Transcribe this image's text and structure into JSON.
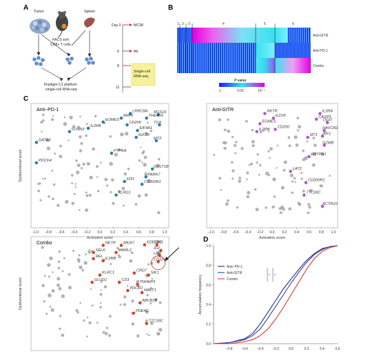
{
  "panel_labels": {
    "a": "A",
    "b": "B",
    "c": "C",
    "d": "D"
  },
  "schematic": {
    "tumor_label": "Tumor",
    "spleen_label": "Spleen",
    "facs_line1": "FACS sort",
    "facs_line2": "CD8+ T cells",
    "fluidigm_line1": "Fluidigm C1 platform",
    "fluidigm_line2": "single-cell RNA-seq",
    "timeline": [
      {
        "day": "Day 0",
        "event": "MC38"
      },
      {
        "day": "6",
        "event": "Ab"
      },
      {
        "day": "8",
        "event": ""
      },
      {
        "day": "11",
        "event": ""
      }
    ],
    "box_line1": "Single-cell",
    "box_line2": "RNA-seq",
    "colors": {
      "timeline_marker": "#c0392b",
      "box_fill": "#f7f19a",
      "tumor": "#8fa8c8",
      "spleen": "#a0524a",
      "cells": "#5c8ec9"
    }
  },
  "heatmap": {
    "row_labels": [
      "Anti-GITR",
      "Anti-PD-1",
      "Combo"
    ],
    "cluster_labels": [
      "1",
      "2",
      "3",
      "4",
      "5",
      "6"
    ],
    "legend_title": "P value",
    "legend_ticks": [
      "1",
      "0.05",
      "10⁻⁴"
    ],
    "colors": {
      "low": "#1a1aff",
      "mid": "#39e0f0",
      "high": "#e000e0"
    }
  },
  "chart_data": [
    {
      "type": "scatter",
      "title": "Anti−PD-1",
      "xlabel": "Activation score",
      "ylabel": "Dysfunctional score",
      "xlim": [
        -1.0,
        1.0
      ],
      "x_ticks": [
        "−1.0",
        "−0.8",
        "−0.6",
        "−0.4",
        "−0.2",
        "0.0",
        "0.2",
        "0.4",
        "0.6",
        "0.8",
        "1.0"
      ],
      "highlight_color": "#2d7fa6",
      "labeled_points": [
        {
          "label": "LRRC8A",
          "x": 0.47,
          "y": 0.92
        },
        {
          "label": "RGS16",
          "x": 0.9,
          "y": 0.9
        },
        {
          "label": "ARF6",
          "x": 0.33,
          "y": 0.84
        },
        {
          "label": "THEMIS",
          "x": 0.72,
          "y": 0.84
        },
        {
          "label": "EOMES",
          "x": 0.05,
          "y": 0.77
        },
        {
          "label": "CD200",
          "x": 0.42,
          "y": 0.72
        },
        {
          "label": "TOX",
          "x": 0.92,
          "y": 0.72
        },
        {
          "label": "IL2RB",
          "x": -0.18,
          "y": 0.66
        },
        {
          "label": "FOXN3",
          "x": -0.47,
          "y": 0.6
        },
        {
          "label": "EIF4A1",
          "x": 0.58,
          "y": 0.62
        },
        {
          "label": "IGF2R",
          "x": 0.56,
          "y": 0.5
        },
        {
          "label": "MT2",
          "x": 0.87,
          "y": 0.44
        },
        {
          "label": "GATA3",
          "x": -0.98,
          "y": 0.41
        },
        {
          "label": "PTPRA",
          "x": 0.18,
          "y": 0.22
        },
        {
          "label": "PDCD4",
          "x": -0.98,
          "y": 0.05
        },
        {
          "label": "GGLT1B",
          "x": 0.81,
          "y": -0.06
        },
        {
          "label": "PARK7",
          "x": 0.71,
          "y": -0.2
        },
        {
          "label": "FLI1",
          "x": 0.38,
          "y": -0.28
        },
        {
          "label": "CD200R1",
          "x": 0.65,
          "y": -0.33
        },
        {
          "label": "KLRG1",
          "x": 0.25,
          "y": -0.52
        }
      ]
    },
    {
      "type": "scatter",
      "title": "Anti-GITR",
      "xlabel": "Activation score",
      "ylabel": "",
      "xlim": [
        -1.0,
        1.0
      ],
      "x_ticks": [
        "−1.0",
        "−0.8",
        "−0.6",
        "−0.4",
        "−0.2",
        "0.0",
        "0.2",
        "0.4",
        "0.6",
        "0.8",
        "1.0"
      ],
      "highlight_color": "#b05cc8",
      "labeled_points": [
        {
          "label": "NKTR",
          "x": -0.12,
          "y": 0.92
        },
        {
          "label": "IL2RA",
          "x": 0.78,
          "y": 0.92
        },
        {
          "label": "IL21R",
          "x": 0.02,
          "y": 0.84
        },
        {
          "label": "CASP3",
          "x": 0.72,
          "y": 0.82
        },
        {
          "label": "TIGIT",
          "x": 0.9,
          "y": 0.76
        },
        {
          "label": "EOMES",
          "x": -0.2,
          "y": 0.74
        },
        {
          "label": "CD200",
          "x": 0.05,
          "y": 0.64
        },
        {
          "label": "IL2RB",
          "x": -0.25,
          "y": 0.6
        },
        {
          "label": "HAVCR2",
          "x": 0.85,
          "y": 0.62
        },
        {
          "label": "MT1",
          "x": 0.58,
          "y": 0.5
        },
        {
          "label": "IRF1",
          "x": 0.82,
          "y": 0.52
        },
        {
          "label": "GZMB",
          "x": 0.85,
          "y": 0.36
        },
        {
          "label": "ENTPD1",
          "x": 0.6,
          "y": 0.16
        },
        {
          "label": "LAT2",
          "x": 0.3,
          "y": -0.1
        },
        {
          "label": "CD200R1",
          "x": 0.55,
          "y": -0.3
        },
        {
          "label": "TTC39C",
          "x": 0.52,
          "y": -0.52
        },
        {
          "label": "ACTR10",
          "x": 0.82,
          "y": -0.72
        }
      ]
    },
    {
      "type": "scatter",
      "title": "Combo",
      "xlabel": "Activation score",
      "ylabel": "Dysfunctional score",
      "xlim": [
        -1.0,
        1.0
      ],
      "x_ticks": [],
      "highlight_color": "#d9432b",
      "labeled_points": [
        {
          "label": "NKTR",
          "x": 0.05,
          "y": 0.94
        },
        {
          "label": "MKI67",
          "x": 0.33,
          "y": 0.94
        },
        {
          "label": "KDELR2",
          "x": 0.69,
          "y": 0.95
        },
        {
          "label": "TBK1",
          "x": 0.88,
          "y": 0.95
        },
        {
          "label": "SELK",
          "x": -0.1,
          "y": 0.8
        },
        {
          "label": "MAML2",
          "x": 0.25,
          "y": 0.8
        },
        {
          "label": "ID2",
          "x": 0.94,
          "y": 0.84
        },
        {
          "label": "LBR",
          "x": 0.92,
          "y": 0.74
        },
        {
          "label": "REL",
          "x": -0.1,
          "y": 0.68
        },
        {
          "label": "IL2RB",
          "x": 0.05,
          "y": 0.64
        },
        {
          "label": "CD226",
          "x": 0.9,
          "y": 0.62
        },
        {
          "label": "KLRC1",
          "x": 0.0,
          "y": 0.36
        },
        {
          "label": "CRD7",
          "x": 0.53,
          "y": 0.4
        },
        {
          "label": "SIK1",
          "x": 0.75,
          "y": 0.36
        },
        {
          "label": "GLUD1",
          "x": -0.12,
          "y": 0.22
        },
        {
          "label": "CD3",
          "x": 0.3,
          "y": 0.22
        },
        {
          "label": "TNFAIP3",
          "x": 0.58,
          "y": 0.18
        },
        {
          "label": "PDCD1",
          "x": 0.43,
          "y": 0.06
        },
        {
          "label": "MALT1",
          "x": 0.65,
          "y": 0.02
        },
        {
          "label": "ABCB1B",
          "x": 0.62,
          "y": -0.18
        },
        {
          "label": "PDE4D",
          "x": 0.52,
          "y": -0.38
        },
        {
          "label": "TTC39C",
          "x": 0.72,
          "y": -0.58
        }
      ]
    },
    {
      "type": "line",
      "xlabel": "",
      "ylabel": "Accumulation frequency",
      "xlim": [
        -1.0,
        0.6
      ],
      "ylim": [
        0.0,
        1.0
      ],
      "y_ticks": [
        "0.0",
        "0.2",
        "0.4",
        "0.6",
        "0.8",
        "1.0"
      ],
      "x_ticks": [
        "−0.8",
        "−0.6",
        "−0.4",
        "−0.2",
        "0.0",
        "0.2",
        "0.4",
        "0.6"
      ],
      "series": [
        {
          "name": "Anti−PD-1",
          "color": "#1c2a8c",
          "x": [
            -1.0,
            -0.8,
            -0.6,
            -0.5,
            -0.4,
            -0.3,
            -0.2,
            -0.1,
            0.0,
            0.1,
            0.2,
            0.3,
            0.4,
            0.5,
            0.6
          ],
          "y": [
            0.0,
            0.01,
            0.05,
            0.1,
            0.2,
            0.32,
            0.44,
            0.56,
            0.66,
            0.76,
            0.85,
            0.92,
            0.97,
            0.99,
            1.0
          ]
        },
        {
          "name": "Anti-GITR",
          "color": "#2e3f9e",
          "x": [
            -1.0,
            -0.8,
            -0.6,
            -0.5,
            -0.4,
            -0.3,
            -0.2,
            -0.1,
            0.0,
            0.1,
            0.2,
            0.3,
            0.4,
            0.5,
            0.6
          ],
          "y": [
            0.0,
            0.01,
            0.04,
            0.08,
            0.15,
            0.26,
            0.38,
            0.5,
            0.62,
            0.73,
            0.83,
            0.91,
            0.96,
            0.99,
            1.0
          ]
        },
        {
          "name": "Combo",
          "color": "#e03030",
          "x": [
            -1.0,
            -0.8,
            -0.6,
            -0.5,
            -0.4,
            -0.3,
            -0.2,
            -0.1,
            0.0,
            0.1,
            0.2,
            0.3,
            0.4,
            0.5,
            0.6
          ],
          "y": [
            0.0,
            0.0,
            0.02,
            0.04,
            0.08,
            0.15,
            0.25,
            0.37,
            0.5,
            0.63,
            0.76,
            0.87,
            0.94,
            0.98,
            1.0
          ]
        }
      ],
      "significance": [
        "*",
        "*"
      ],
      "legend_position": "center-left"
    }
  ]
}
